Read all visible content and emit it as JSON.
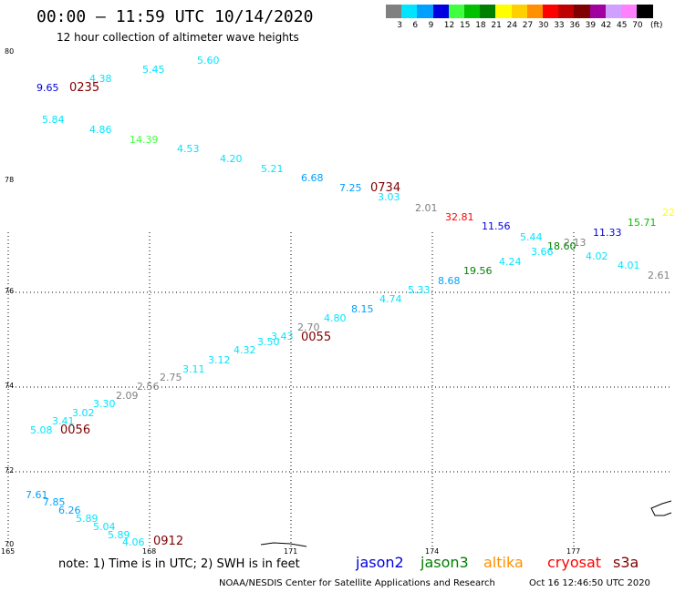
{
  "title": "00:00 – 11:59 UTC 10/14/2020",
  "subtitle": "12 hour collection of altimeter wave heights",
  "legend": {
    "unit": "(ft)",
    "bins": [
      {
        "label": "3",
        "color": "#808080"
      },
      {
        "label": "6",
        "color": "#00e5ff"
      },
      {
        "label": "9",
        "color": "#00a0ff"
      },
      {
        "label": "12",
        "color": "#0000e0"
      },
      {
        "label": "15",
        "color": "#40ff40"
      },
      {
        "label": "18",
        "color": "#00c000"
      },
      {
        "label": "21",
        "color": "#008000"
      },
      {
        "label": "24",
        "color": "#ffff00"
      },
      {
        "label": "27",
        "color": "#ffd000"
      },
      {
        "label": "30",
        "color": "#ff9000"
      },
      {
        "label": "33",
        "color": "#ff0000"
      },
      {
        "label": "36",
        "color": "#c00000"
      },
      {
        "label": "39",
        "color": "#800000"
      },
      {
        "label": "42",
        "color": "#a000a0"
      },
      {
        "label": "45",
        "color": "#d0a0ff"
      },
      {
        "label": "70",
        "color": "#ff80ff"
      },
      {
        "label": "",
        "color": "#000000"
      }
    ]
  },
  "latitude_labels": [
    "80",
    "78",
    "76",
    "74",
    "72",
    "70"
  ],
  "longitude_labels": [
    "165",
    "168",
    "171",
    "174",
    "177"
  ],
  "track_times": [
    "0235",
    "0734",
    "0055",
    "0056",
    "0912"
  ],
  "wave_heights": [
    {
      "value": "9.65",
      "color": "#0000e0"
    },
    {
      "value": "4.38",
      "color": "#00e5ff"
    },
    {
      "value": "5.45",
      "color": "#00e5ff"
    },
    {
      "value": "5.60",
      "color": "#00e5ff"
    },
    {
      "value": "5.84",
      "color": "#00e5ff"
    },
    {
      "value": "4.86",
      "color": "#00e5ff"
    },
    {
      "value": "14.39",
      "color": "#40ff40"
    },
    {
      "value": "4.53",
      "color": "#00e5ff"
    },
    {
      "value": "4.20",
      "color": "#00e5ff"
    },
    {
      "value": "5.21",
      "color": "#00e5ff"
    },
    {
      "value": "6.68",
      "color": "#00a0ff"
    },
    {
      "value": "7.25",
      "color": "#00a0ff"
    },
    {
      "value": "3.03",
      "color": "#00e5ff"
    },
    {
      "value": "2.01",
      "color": "#808080"
    },
    {
      "value": "32.81",
      "color": "#ff0000"
    },
    {
      "value": "11.56",
      "color": "#0000e0"
    },
    {
      "value": "5.44",
      "color": "#00e5ff"
    },
    {
      "value": "18.60",
      "color": "#008000"
    },
    {
      "value": "2.13",
      "color": "#808080"
    },
    {
      "value": "11.33",
      "color": "#0000e0"
    },
    {
      "value": "15.71",
      "color": "#00c000"
    },
    {
      "value": "22",
      "color": "#ffff00"
    },
    {
      "value": "3.66",
      "color": "#00e5ff"
    },
    {
      "value": "4.24",
      "color": "#00e5ff"
    },
    {
      "value": "4.02",
      "color": "#00e5ff"
    },
    {
      "value": "19.56",
      "color": "#008000"
    },
    {
      "value": "4.01",
      "color": "#00e5ff"
    },
    {
      "value": "2.61",
      "color": "#808080"
    },
    {
      "value": "8.68",
      "color": "#00a0ff"
    },
    {
      "value": "5.33",
      "color": "#00e5ff"
    },
    {
      "value": "4.74",
      "color": "#00e5ff"
    },
    {
      "value": "8.15",
      "color": "#00a0ff"
    },
    {
      "value": "4.80",
      "color": "#00e5ff"
    },
    {
      "value": "2.70",
      "color": "#808080"
    },
    {
      "value": "3.43",
      "color": "#00e5ff"
    },
    {
      "value": "3.50",
      "color": "#00e5ff"
    },
    {
      "value": "4.32",
      "color": "#00e5ff"
    },
    {
      "value": "3.12",
      "color": "#00e5ff"
    },
    {
      "value": "3.11",
      "color": "#00e5ff"
    },
    {
      "value": "2.75",
      "color": "#808080"
    },
    {
      "value": "2.56",
      "color": "#808080"
    },
    {
      "value": "2.09",
      "color": "#808080"
    },
    {
      "value": "3.30",
      "color": "#00e5ff"
    },
    {
      "value": "3.02",
      "color": "#00e5ff"
    },
    {
      "value": "3.41",
      "color": "#00e5ff"
    },
    {
      "value": "5.08",
      "color": "#00e5ff"
    },
    {
      "value": "7.61",
      "color": "#00a0ff"
    },
    {
      "value": "7.85",
      "color": "#00a0ff"
    },
    {
      "value": "6.26",
      "color": "#00a0ff"
    },
    {
      "value": "5.89",
      "color": "#00e5ff"
    },
    {
      "value": "5.04",
      "color": "#00e5ff"
    },
    {
      "value": "5.89",
      "color": "#00e5ff"
    },
    {
      "value": "4.06",
      "color": "#00e5ff"
    }
  ],
  "note": "note: 1) Time is in UTC; 2) SWH is in feet",
  "satellites": [
    {
      "name": "jason2",
      "color": "#0000e0"
    },
    {
      "name": "jason3",
      "color": "#008000"
    },
    {
      "name": "altika",
      "color": "#ff9000"
    },
    {
      "name": "cryosat",
      "color": "#ff0000"
    },
    {
      "name": "s3a",
      "color": "#800000"
    }
  ],
  "credit": "NOAA/NESDIS Center for Satellite Applications and Research",
  "timestamp": "Oct 16 12:46:50 UTC 2020"
}
